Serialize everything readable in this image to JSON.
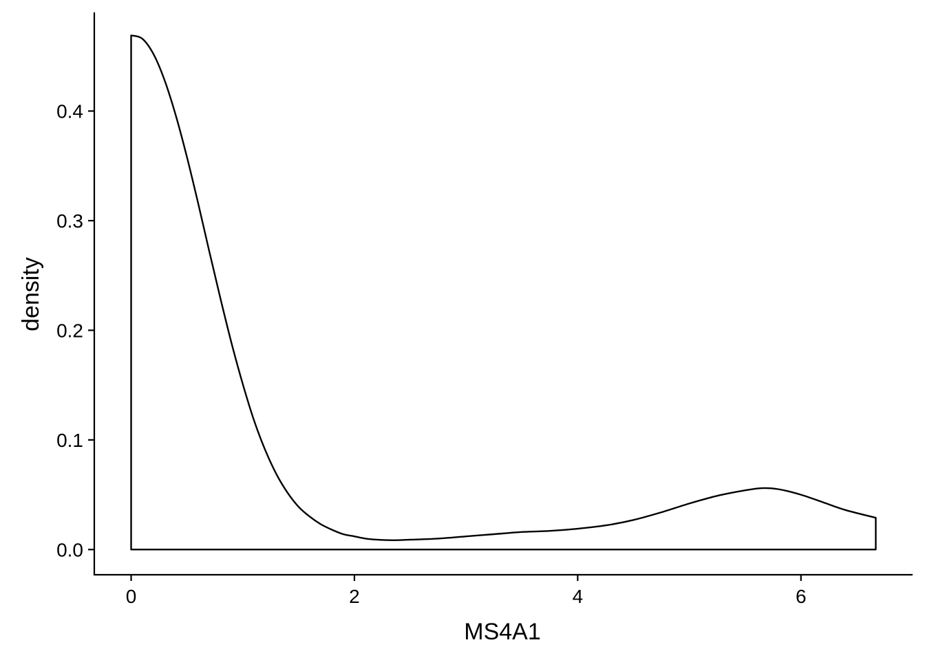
{
  "chart_data": {
    "type": "area",
    "xlabel": "MS4A1",
    "ylabel": "density",
    "xlim": [
      -0.33,
      7.0
    ],
    "ylim": [
      -0.023,
      0.49
    ],
    "x_ticks": [
      0,
      2,
      4,
      6
    ],
    "x_tick_labels": [
      "0",
      "2",
      "4",
      "6"
    ],
    "y_ticks": [
      0.0,
      0.1,
      0.2,
      0.3,
      0.4
    ],
    "y_tick_labels": [
      "0.0",
      "0.1",
      "0.2",
      "0.3",
      "0.4"
    ],
    "grid": false,
    "legend": "none",
    "series": [
      {
        "x": [
          0.0,
          0.1,
          0.2,
          0.3,
          0.4,
          0.5,
          0.6,
          0.7,
          0.8,
          0.9,
          1.0,
          1.1,
          1.2,
          1.3,
          1.4,
          1.5,
          1.6,
          1.7,
          1.8,
          1.9,
          2.0,
          2.1,
          2.2,
          2.35,
          2.5,
          2.75,
          3.0,
          3.25,
          3.5,
          3.75,
          4.0,
          4.25,
          4.5,
          4.75,
          5.0,
          5.25,
          5.5,
          5.65,
          5.8,
          6.0,
          6.2,
          6.4,
          6.67
        ],
        "y": [
          0.469,
          0.466,
          0.452,
          0.428,
          0.396,
          0.358,
          0.316,
          0.272,
          0.229,
          0.188,
          0.151,
          0.118,
          0.091,
          0.069,
          0.052,
          0.039,
          0.03,
          0.023,
          0.018,
          0.014,
          0.012,
          0.01,
          0.009,
          0.0085,
          0.009,
          0.01,
          0.012,
          0.014,
          0.016,
          0.017,
          0.019,
          0.022,
          0.027,
          0.034,
          0.042,
          0.049,
          0.054,
          0.056,
          0.055,
          0.05,
          0.043,
          0.036,
          0.029
        ]
      }
    ]
  }
}
